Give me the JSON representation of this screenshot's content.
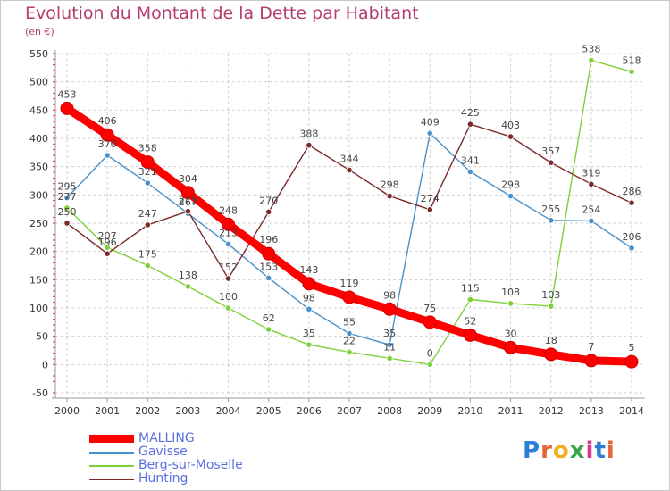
{
  "header": {
    "title": "Evolution du Montant de la Dette par Habitant",
    "subtitle": "(en €)"
  },
  "logo_text": "Proxiti",
  "chart_data": {
    "type": "line",
    "title": "Evolution du Montant de la Dette par Habitant",
    "subtitle": "(en €)",
    "xlabel": "",
    "ylabel": "",
    "x": [
      2000,
      2001,
      2002,
      2003,
      2004,
      2005,
      2006,
      2007,
      2008,
      2009,
      2010,
      2011,
      2012,
      2013,
      2014
    ],
    "ylim": [
      -50,
      550
    ],
    "yticks": [
      -50,
      0,
      50,
      100,
      150,
      200,
      250,
      300,
      350,
      400,
      450,
      500,
      550
    ],
    "grid": true,
    "legend_position": "bottom-left",
    "series": [
      {
        "name": "Gavisse",
        "color": "#4a90c8",
        "values": [
          295,
          370,
          321,
          267,
          213,
          153,
          98,
          55,
          35,
          409,
          341,
          298,
          255,
          254,
          206
        ],
        "labels": [
          "295",
          "370",
          "321",
          "267",
          "213",
          "153",
          "98",
          "55",
          "35",
          "409",
          "341",
          "298",
          "255",
          "254",
          "206"
        ]
      },
      {
        "name": "Berg-sur-Moselle",
        "color": "#7fd13a",
        "values": [
          277,
          207,
          175,
          138,
          100,
          62,
          35,
          22,
          11,
          0,
          115,
          108,
          103,
          538,
          518
        ],
        "labels": [
          "277",
          "207",
          "175",
          "138",
          "100",
          "62",
          "35",
          "22",
          "11",
          "0",
          "115",
          "108",
          "103",
          "538",
          "518"
        ]
      },
      {
        "name": "Hunting",
        "color": "#7b2a2a",
        "values": [
          250,
          196,
          247,
          271,
          152,
          270,
          388,
          344,
          298,
          274,
          425,
          403,
          357,
          319,
          286
        ],
        "labels": [
          "250",
          "196",
          "247",
          "271",
          "152",
          "270",
          "388",
          "344",
          "298",
          "274",
          "425",
          "403",
          "357",
          "319",
          "286"
        ]
      },
      {
        "name": "MALLING",
        "color": "#ff0000",
        "values": [
          453,
          406,
          358,
          304,
          248,
          196,
          143,
          119,
          98,
          75,
          52,
          30,
          18,
          7,
          5
        ],
        "labels": [
          "453",
          "406",
          "358",
          "304",
          "248",
          "196",
          "143",
          "119",
          "98",
          "75",
          "52",
          "30",
          "18",
          "7",
          "5"
        ]
      }
    ],
    "legend": [
      "MALLING",
      "Gavisse",
      "Berg-sur-Moselle",
      "Hunting"
    ]
  }
}
